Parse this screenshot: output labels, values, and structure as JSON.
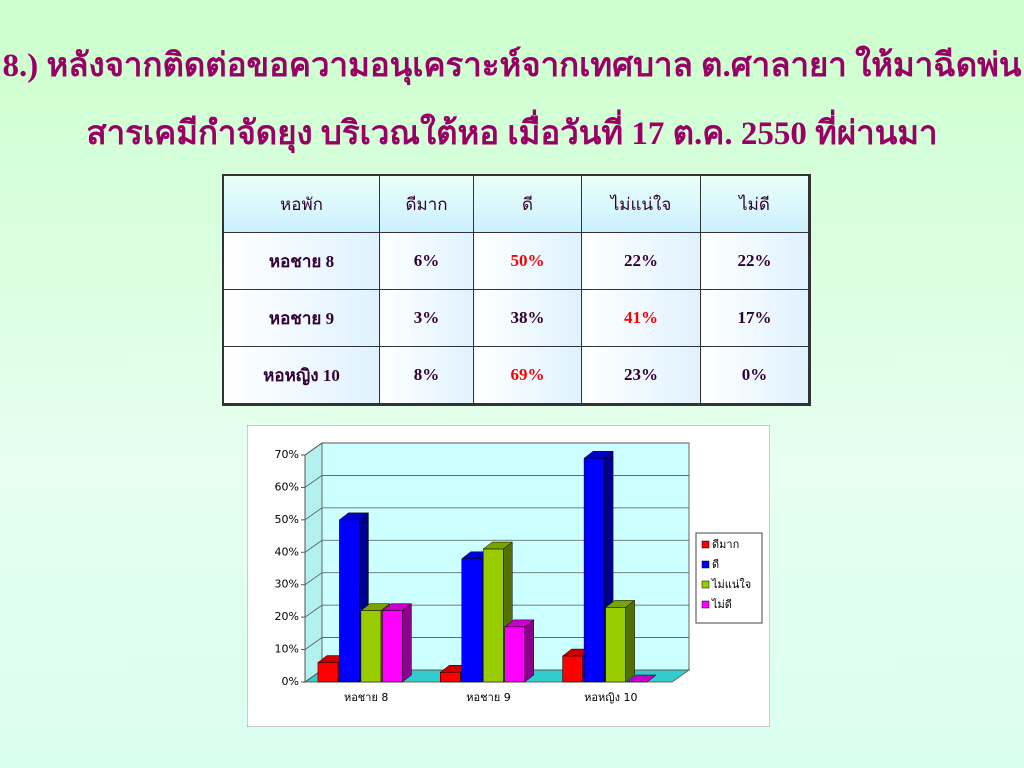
{
  "title": {
    "lines": [
      "8.) หลังจากติดต่อขอความอนุเคราะห์จากเทศบาล ต.ศาลายา  ให้มาฉีดพ่น",
      "สารเคมีกำจัดยุง  บริเวณใต้หอ  เมื่อวันที่ 17 ต.ค. 2550 ที่ผ่านมา"
    ]
  },
  "table": {
    "header": [
      "หอพัก",
      "ดีมาก",
      "ดี",
      "ไม่แน่ใจ",
      "ไม่ดี"
    ],
    "rows": [
      [
        "หอชาย 8",
        "6%",
        "50%",
        "22%",
        "22%"
      ],
      [
        "หอชาย 9",
        "3%",
        "38%",
        "41%",
        "17%"
      ],
      [
        "หอหญิง 10",
        "8%",
        "69%",
        "23%",
        "0%"
      ]
    ]
  },
  "chart_data": {
    "type": "bar3d",
    "categories": [
      "หอชาย 8",
      "หอชาย 9",
      "หอหญิง 10"
    ],
    "series": [
      {
        "name": "ดีมาก",
        "color": "#ff0000",
        "values": [
          6,
          3,
          8
        ]
      },
      {
        "name": "ดี",
        "color": "#0000ff",
        "values": [
          50,
          38,
          69
        ]
      },
      {
        "name": "ไม่แน่ใจ",
        "color": "#99cc00",
        "values": [
          22,
          41,
          23
        ]
      },
      {
        "name": "ไม่ดี",
        "color": "#ff00ff",
        "values": [
          22,
          17,
          0
        ]
      }
    ],
    "ylim": [
      0,
      70
    ],
    "yticks": [
      {
        "value": 0,
        "label": "0%"
      },
      {
        "value": 10,
        "label": "10%"
      },
      {
        "value": 20,
        "label": "20%"
      },
      {
        "value": 30,
        "label": "30%"
      },
      {
        "value": 40,
        "label": "40%"
      },
      {
        "value": 50,
        "label": "50%"
      },
      {
        "value": 60,
        "label": "60%"
      },
      {
        "value": 70,
        "label": "70%"
      }
    ],
    "grid": true,
    "legend": "right"
  }
}
